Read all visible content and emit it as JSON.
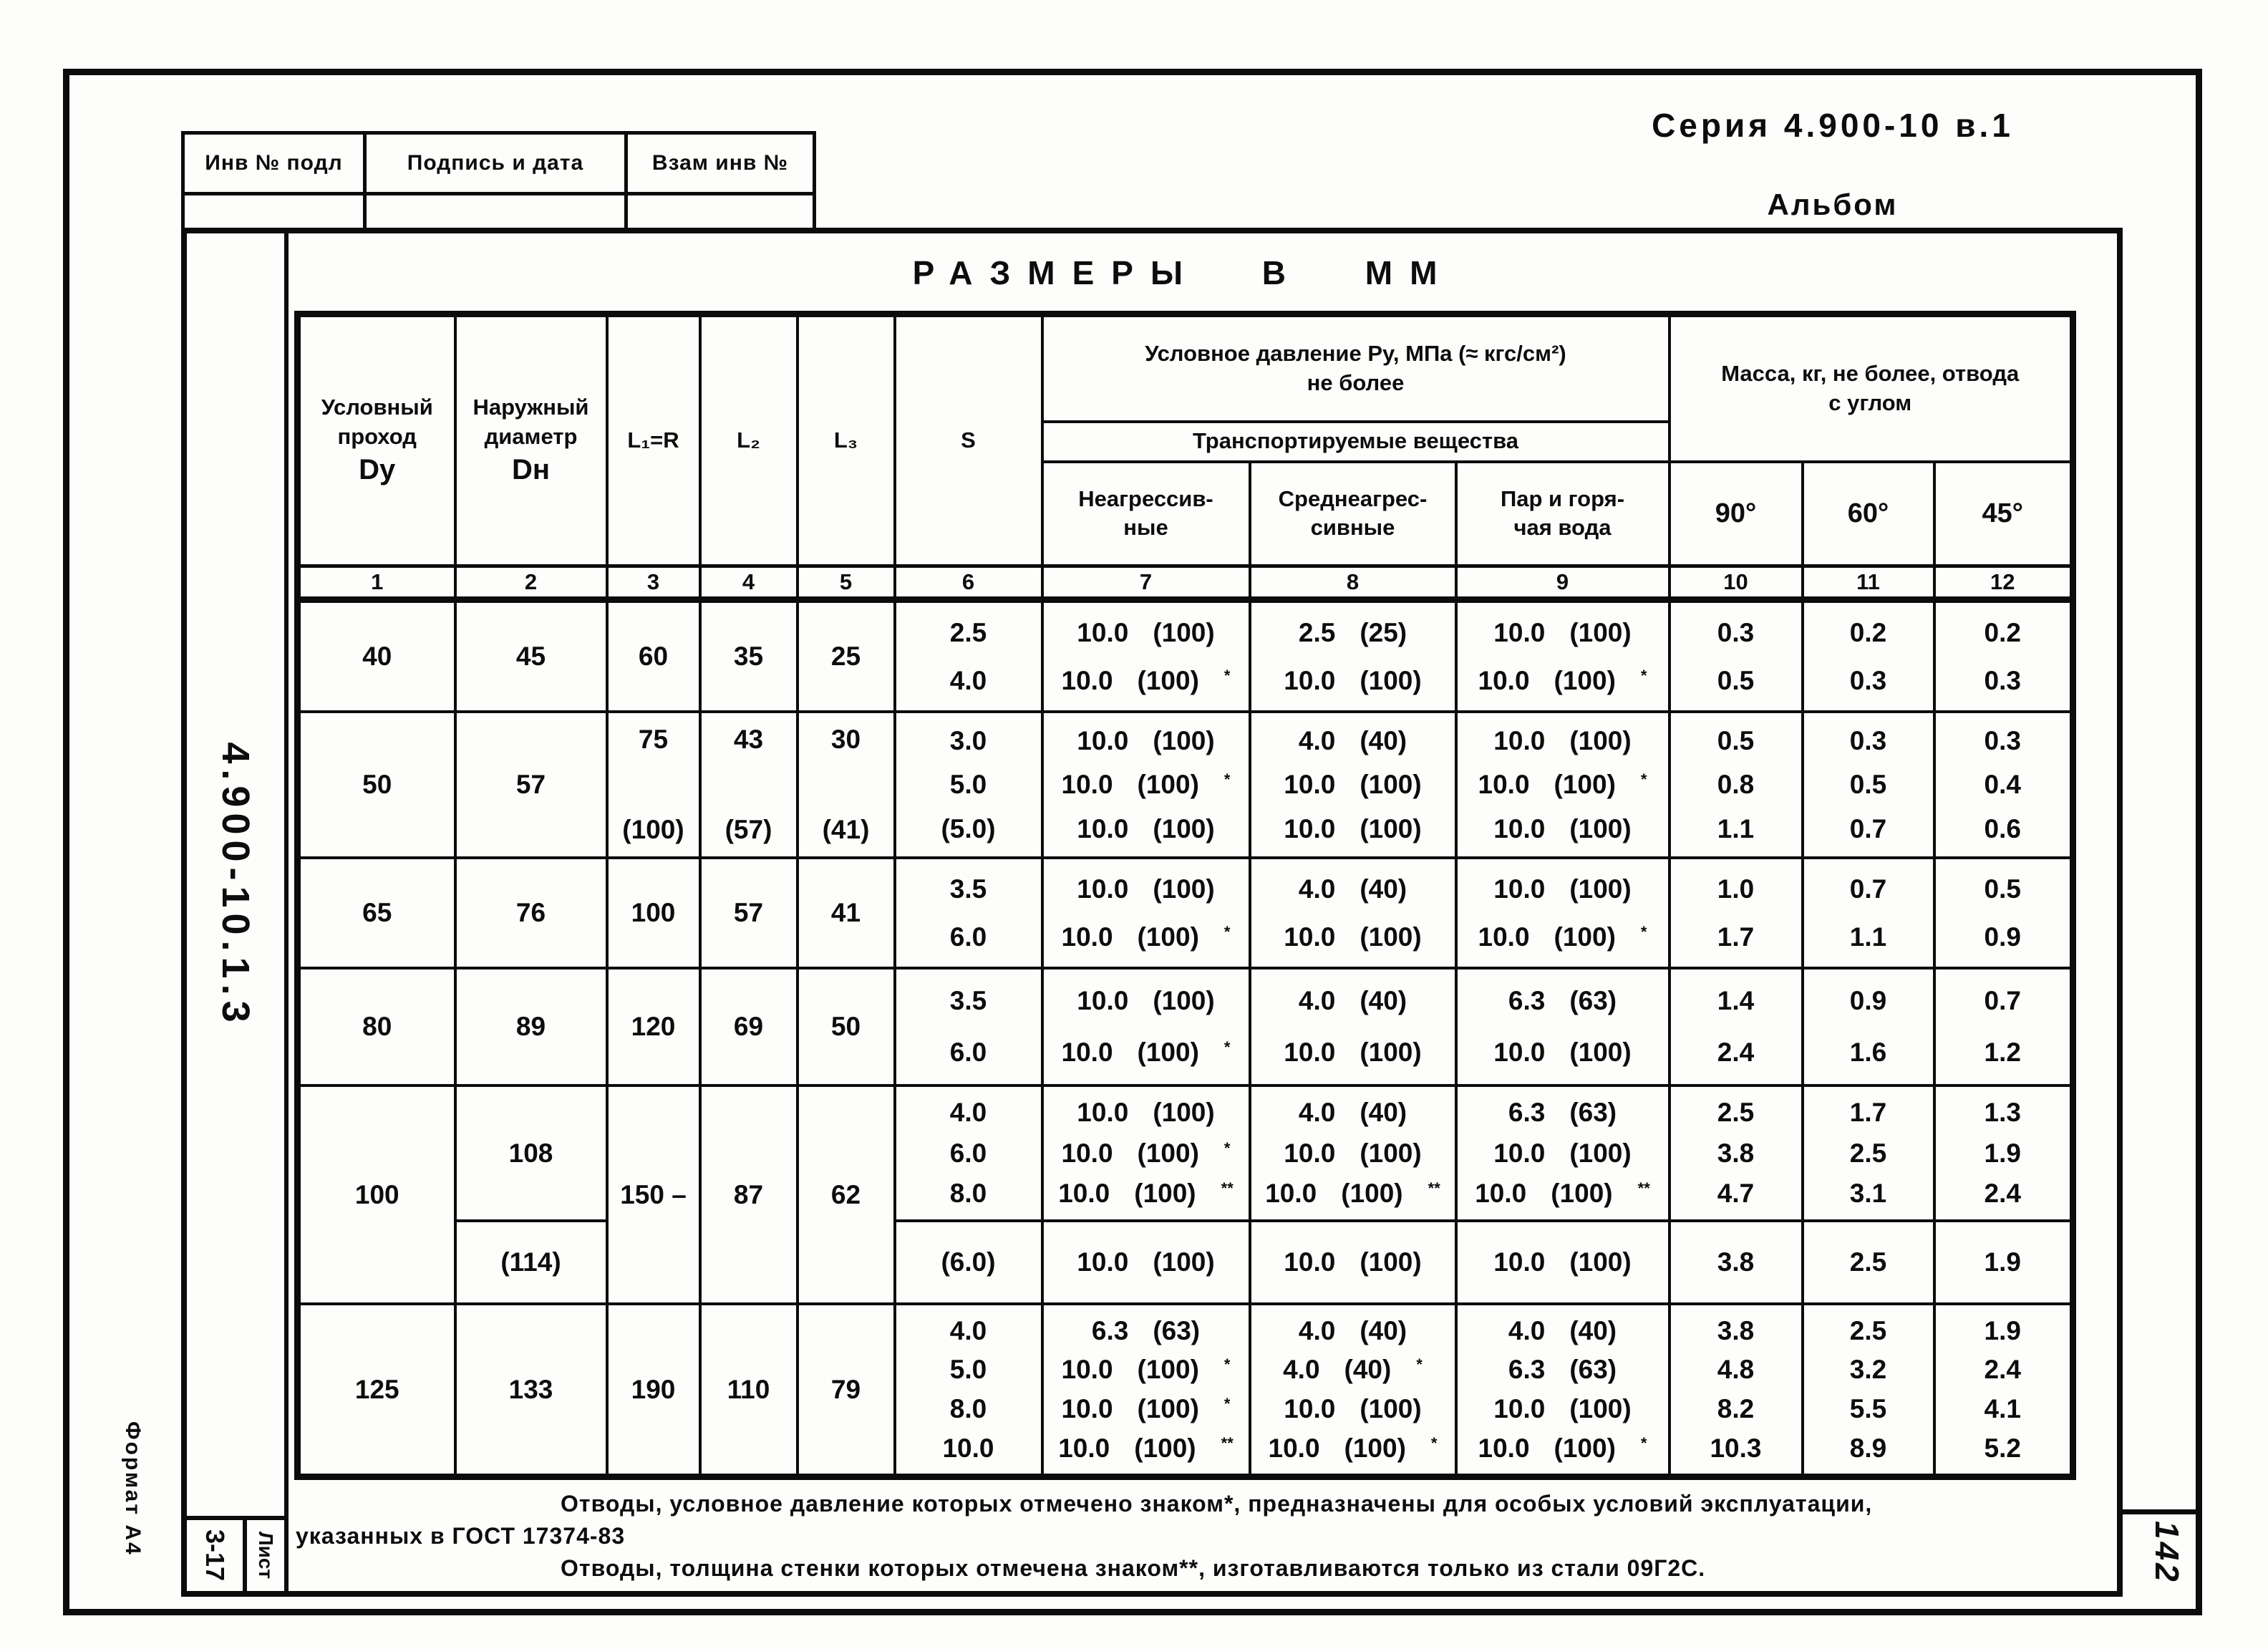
{
  "page": {
    "series_title": "Серия 4.900-10 в.1",
    "album_label": "Альбом",
    "page_number": "142",
    "format_label": "Формат А4",
    "doc_code_vertical": "4.900-10.1.3",
    "sheet_ref": "3-17",
    "sheet_label": "Лист"
  },
  "stamp": {
    "inv_label": "Инв № подл",
    "sign_label": "Подпись и дата",
    "replace_label": "Взам инв №"
  },
  "table": {
    "title": "Размеры в мм",
    "header": {
      "col1_label": "Условный\nпроход",
      "col1_sym": "Dу",
      "col2_label": "Наружный\nдиаметр",
      "col2_sym": "Dн",
      "col3_sym": "L₁=R",
      "col4_sym": "L₂",
      "col5_sym": "L₃",
      "col6_sym": "S",
      "pressure_group": "Условное давление Ру, МПа (≈ кгс/см²)\nне более",
      "media_group": "Транспортируемые вещества",
      "col7_label": "Неагрессив-\nные",
      "col8_label": "Среднеагрес-\nсивные",
      "col9_label": "Пар и горя-\nчая вода",
      "mass_group": "Масса, кг, не более, отвода\nс углом",
      "col10_label": "90°",
      "col11_label": "60°",
      "col12_label": "45°",
      "numbers": [
        "1",
        "2",
        "3",
        "4",
        "5",
        "6",
        "7",
        "8",
        "9",
        "10",
        "11",
        "12"
      ]
    },
    "rows": [
      {
        "dy": "40",
        "dn": [
          "45"
        ],
        "l1": [
          "60"
        ],
        "l2": [
          "35"
        ],
        "l3": [
          "25"
        ],
        "s_values": [
          "2.5",
          "4.0"
        ],
        "non_aggressive": [
          "10.0 (100)",
          "10.0 (100)*"
        ],
        "medium_aggressive": [
          "2.5 (25)",
          "10.0 (100)"
        ],
        "steam_hot_water": [
          "10.0 (100)",
          "10.0 (100)*"
        ],
        "mass_90": [
          "0.3",
          "0.5"
        ],
        "mass_60": [
          "0.2",
          "0.3"
        ],
        "mass_45": [
          "0.2",
          "0.3"
        ]
      },
      {
        "dy": "50",
        "dn": [
          "57"
        ],
        "l1": [
          "75",
          "(100)"
        ],
        "l2": [
          "43",
          "(57)"
        ],
        "l3": [
          "30",
          "(41)"
        ],
        "s_values": [
          "3.0",
          "5.0",
          "(5.0)"
        ],
        "non_aggressive": [
          "10.0 (100)",
          "10.0 (100)*",
          "10.0 (100)"
        ],
        "medium_aggressive": [
          "4.0 (40)",
          "10.0 (100)",
          "10.0 (100)"
        ],
        "steam_hot_water": [
          "10.0 (100)",
          "10.0 (100)*",
          "10.0 (100)"
        ],
        "mass_90": [
          "0.5",
          "0.8",
          "1.1"
        ],
        "mass_60": [
          "0.3",
          "0.5",
          "0.7"
        ],
        "mass_45": [
          "0.3",
          "0.4",
          "0.6"
        ]
      },
      {
        "dy": "65",
        "dn": [
          "76"
        ],
        "l1": [
          "100"
        ],
        "l2": [
          "57"
        ],
        "l3": [
          "41"
        ],
        "s_values": [
          "3.5",
          "6.0"
        ],
        "non_aggressive": [
          "10.0 (100)",
          "10.0 (100)*"
        ],
        "medium_aggressive": [
          "4.0 (40)",
          "10.0 (100)"
        ],
        "steam_hot_water": [
          "10.0 (100)",
          "10.0 (100)*"
        ],
        "mass_90": [
          "1.0",
          "1.7"
        ],
        "mass_60": [
          "0.7",
          "1.1"
        ],
        "mass_45": [
          "0.5",
          "0.9"
        ]
      },
      {
        "dy": "80",
        "dn": [
          "89"
        ],
        "l1": [
          "120"
        ],
        "l2": [
          "69"
        ],
        "l3": [
          "50"
        ],
        "s_values": [
          "3.5",
          "6.0"
        ],
        "non_aggressive": [
          "10.0 (100)",
          "10.0 (100)*"
        ],
        "medium_aggressive": [
          "4.0 (40)",
          "10.0 (100)"
        ],
        "steam_hot_water": [
          "6.3 (63)",
          "10.0 (100)"
        ],
        "mass_90": [
          "1.4",
          "2.4"
        ],
        "mass_60": [
          "0.9",
          "1.6"
        ],
        "mass_45": [
          "0.7",
          "1.2"
        ]
      },
      {
        "dy": "100",
        "span2": true,
        "dn": [
          "108"
        ],
        "l1": [
          "150 –"
        ],
        "l2": [
          "87"
        ],
        "l3": [
          "62"
        ],
        "s_values": [
          "4.0",
          "6.0",
          "8.0"
        ],
        "non_aggressive": [
          "10.0 (100)",
          "10.0 (100)*",
          "10.0 (100)**"
        ],
        "medium_aggressive": [
          "4.0 (40)",
          "10.0 (100)",
          "10.0 (100)**"
        ],
        "steam_hot_water": [
          "6.3 (63)",
          "10.0 (100)",
          "10.0 (100)**"
        ],
        "mass_90": [
          "2.5",
          "3.8",
          "4.7"
        ],
        "mass_60": [
          "1.7",
          "2.5",
          "3.1"
        ],
        "mass_45": [
          "1.3",
          "1.9",
          "2.4"
        ]
      },
      {
        "sub": true,
        "dn": [
          "(114)"
        ],
        "s_values": [
          "(6.0)"
        ],
        "non_aggressive": [
          "10.0 (100)"
        ],
        "medium_aggressive": [
          "10.0 (100)"
        ],
        "steam_hot_water": [
          "10.0 (100)"
        ],
        "mass_90": [
          "3.8"
        ],
        "mass_60": [
          "2.5"
        ],
        "mass_45": [
          "1.9"
        ]
      },
      {
        "dy": "125",
        "dn": [
          "133"
        ],
        "l1": [
          "190"
        ],
        "l2": [
          "110"
        ],
        "l3": [
          "79"
        ],
        "s_values": [
          "4.0",
          "5.0",
          "8.0",
          "10.0"
        ],
        "non_aggressive": [
          "6.3 (63)",
          "10.0 (100)*",
          "10.0 (100)*",
          "10.0 (100)**"
        ],
        "medium_aggressive": [
          "4.0 (40)",
          "4.0 (40)*",
          "10.0 (100)",
          "10.0 (100)*"
        ],
        "steam_hot_water": [
          "4.0 (40)",
          "6.3 (63)",
          "10.0 (100)",
          "10.0 (100)*"
        ],
        "mass_90": [
          "3.8",
          "4.8",
          "8.2",
          "10.3"
        ],
        "mass_60": [
          "2.5",
          "3.2",
          "5.5",
          "8.9"
        ],
        "mass_45": [
          "1.9",
          "2.4",
          "4.1",
          "5.2"
        ]
      }
    ]
  },
  "footnotes": [
    "Отводы, условное давление которых отмечено знаком*, предназначены для особых условий эксплуатации,",
    "указанных в ГОСТ 17374-83",
    "Отводы, толщина стенки которых отмечена знаком**, изготавливаются только из стали 09Г2С."
  ]
}
